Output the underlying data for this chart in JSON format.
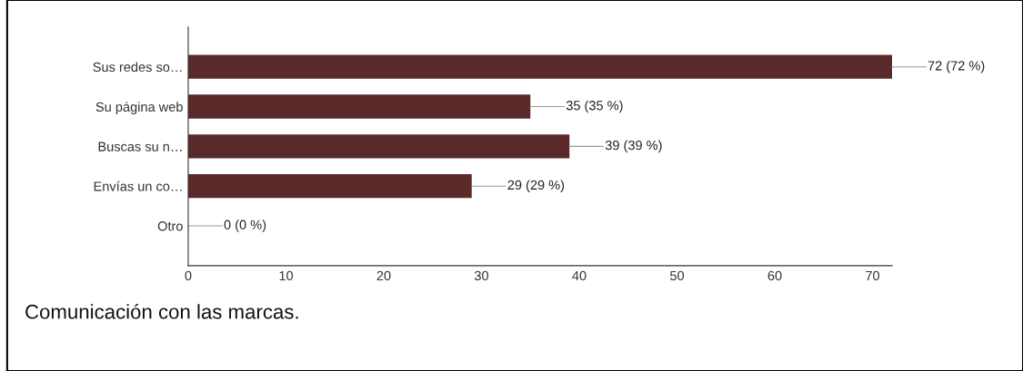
{
  "chart_data": {
    "type": "bar",
    "orientation": "horizontal",
    "categories": [
      "Sus redes so…",
      "Su página web",
      "Buscas su n…",
      "Envías un co…",
      "Otro"
    ],
    "values": [
      72,
      35,
      39,
      29,
      0
    ],
    "color": "#5a2a2a",
    "value_labels": [
      "72 (72 %)",
      "35 (35 %)",
      "39 (39 %)",
      "29 (29 %)",
      "0 (0 %)"
    ],
    "xlim": [
      0,
      72
    ],
    "xticks": [
      0,
      10,
      20,
      30,
      40,
      50,
      60,
      70
    ],
    "grid": false,
    "annotations": [
      "Comunicación con las marcas."
    ]
  }
}
